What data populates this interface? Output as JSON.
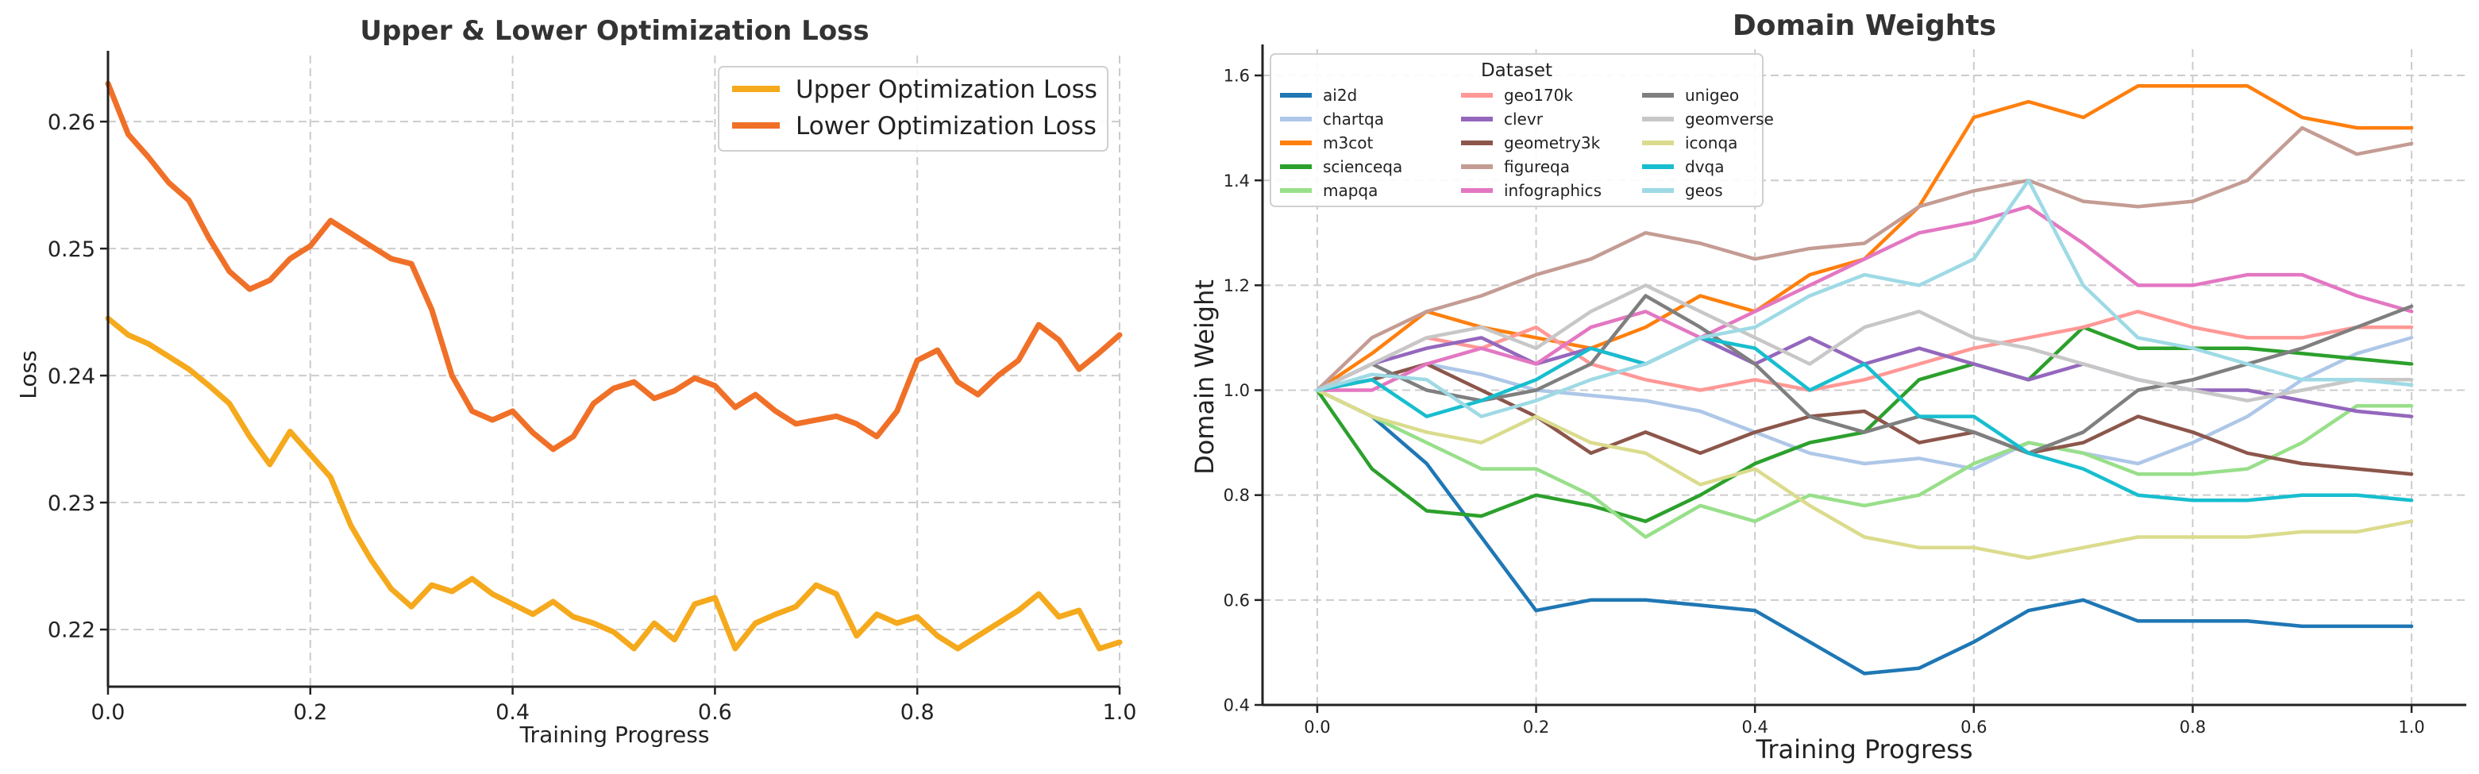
{
  "chart_data": [
    {
      "type": "line",
      "title": "Upper & Lower Optimization Loss",
      "xlabel": "Training Progress",
      "ylabel": "Loss",
      "xlim": [
        0.0,
        1.0
      ],
      "ylim": [
        0.2155,
        0.2652
      ],
      "xticks": [
        0.0,
        0.2,
        0.4,
        0.6,
        0.8,
        1.0
      ],
      "xtick_labels": [
        "0.0",
        "0.2",
        "0.4",
        "0.6",
        "0.8",
        "1.0"
      ],
      "yticks": [
        0.22,
        0.23,
        0.24,
        0.25,
        0.26
      ],
      "ytick_labels": [
        "0.22",
        "0.23",
        "0.24",
        "0.25",
        "0.26"
      ],
      "grid": true,
      "legend_position": "top-right",
      "series": [
        {
          "name": "Upper Optimization Loss",
          "color": "#f5a91c",
          "x": [
            0.0,
            0.02,
            0.04,
            0.06,
            0.08,
            0.1,
            0.12,
            0.14,
            0.16,
            0.18,
            0.2,
            0.22,
            0.24,
            0.26,
            0.28,
            0.3,
            0.32,
            0.34,
            0.36,
            0.38,
            0.4,
            0.42,
            0.44,
            0.46,
            0.48,
            0.5,
            0.52,
            0.54,
            0.56,
            0.58,
            0.6,
            0.62,
            0.64,
            0.66,
            0.68,
            0.7,
            0.72,
            0.74,
            0.76,
            0.78,
            0.8,
            0.82,
            0.84,
            0.86,
            0.88,
            0.9,
            0.92,
            0.94,
            0.96,
            0.98,
            1.0
          ],
          "y": [
            0.2445,
            0.2432,
            0.2425,
            0.2415,
            0.2405,
            0.2392,
            0.2378,
            0.2352,
            0.233,
            0.2356,
            0.2338,
            0.232,
            0.2282,
            0.2255,
            0.2232,
            0.2218,
            0.2235,
            0.223,
            0.224,
            0.2228,
            0.222,
            0.2212,
            0.2222,
            0.221,
            0.2205,
            0.2198,
            0.2185,
            0.2205,
            0.2192,
            0.222,
            0.2225,
            0.2185,
            0.2205,
            0.2212,
            0.2218,
            0.2235,
            0.2228,
            0.2195,
            0.2212,
            0.2205,
            0.221,
            0.2195,
            0.2185,
            0.2195,
            0.2205,
            0.2215,
            0.2228,
            0.221,
            0.2215,
            0.2185,
            0.219
          ]
        },
        {
          "name": "Lower Optimization Loss",
          "color": "#f07028",
          "x": [
            0.0,
            0.02,
            0.04,
            0.06,
            0.08,
            0.1,
            0.12,
            0.14,
            0.16,
            0.18,
            0.2,
            0.22,
            0.24,
            0.26,
            0.28,
            0.3,
            0.32,
            0.34,
            0.36,
            0.38,
            0.4,
            0.42,
            0.44,
            0.46,
            0.48,
            0.5,
            0.52,
            0.54,
            0.56,
            0.58,
            0.6,
            0.62,
            0.64,
            0.66,
            0.68,
            0.7,
            0.72,
            0.74,
            0.76,
            0.78,
            0.8,
            0.82,
            0.84,
            0.86,
            0.88,
            0.9,
            0.92,
            0.94,
            0.96,
            0.98,
            1.0
          ],
          "y": [
            0.263,
            0.259,
            0.2572,
            0.2552,
            0.2538,
            0.2508,
            0.2482,
            0.2468,
            0.2475,
            0.2492,
            0.2502,
            0.2522,
            0.2512,
            0.2502,
            0.2492,
            0.2488,
            0.2452,
            0.24,
            0.2372,
            0.2365,
            0.2372,
            0.2355,
            0.2342,
            0.2352,
            0.2378,
            0.239,
            0.2395,
            0.2382,
            0.2388,
            0.2398,
            0.2392,
            0.2375,
            0.2385,
            0.2372,
            0.2362,
            0.2365,
            0.2368,
            0.2362,
            0.2352,
            0.2372,
            0.2412,
            0.242,
            0.2395,
            0.2385,
            0.24,
            0.2412,
            0.244,
            0.2428,
            0.2405,
            0.2418,
            0.2432
          ]
        }
      ]
    },
    {
      "type": "line",
      "title": "Domain Weights",
      "xlabel": "Training Progress",
      "ylabel": "Domain Weight",
      "xlim": [
        -0.05,
        1.05
      ],
      "ylim": [
        0.4,
        1.65
      ],
      "xticks": [
        0.0,
        0.2,
        0.4,
        0.6,
        0.8,
        1.0
      ],
      "xtick_labels": [
        "0.0",
        "0.2",
        "0.4",
        "0.6",
        "0.8",
        "1.0"
      ],
      "yticks": [
        0.4,
        0.6,
        0.8,
        1.0,
        1.2,
        1.4,
        1.6
      ],
      "ytick_labels": [
        "0.4",
        "0.6",
        "0.8",
        "1.0",
        "1.2",
        "1.4",
        "1.6"
      ],
      "grid": true,
      "legend_title": "Dataset",
      "legend_position": "top-left",
      "x": [
        0.0,
        0.05,
        0.1,
        0.15,
        0.2,
        0.25,
        0.3,
        0.35,
        0.4,
        0.45,
        0.5,
        0.55,
        0.6,
        0.65,
        0.7,
        0.75,
        0.8,
        0.85,
        0.9,
        0.95,
        1.0
      ],
      "series": [
        {
          "name": "ai2d",
          "color": "#1f77b4",
          "values": [
            1.0,
            0.95,
            0.86,
            0.72,
            0.58,
            0.6,
            0.6,
            0.59,
            0.58,
            0.52,
            0.46,
            0.47,
            0.52,
            0.58,
            0.6,
            0.56,
            0.56,
            0.56,
            0.55,
            0.55,
            0.55
          ]
        },
        {
          "name": "chartqa",
          "color": "#aec7e8",
          "values": [
            1.0,
            1.02,
            1.05,
            1.03,
            1.0,
            0.99,
            0.98,
            0.96,
            0.92,
            0.88,
            0.86,
            0.87,
            0.85,
            0.9,
            0.88,
            0.86,
            0.9,
            0.95,
            1.02,
            1.07,
            1.1
          ]
        },
        {
          "name": "m3cot",
          "color": "#ff7f0e",
          "values": [
            1.0,
            1.07,
            1.15,
            1.12,
            1.1,
            1.08,
            1.12,
            1.18,
            1.15,
            1.22,
            1.25,
            1.35,
            1.52,
            1.55,
            1.52,
            1.58,
            1.58,
            1.58,
            1.52,
            1.5,
            1.5
          ]
        },
        {
          "name": "scienceqa",
          "color": "#2ca02c",
          "values": [
            1.0,
            0.85,
            0.77,
            0.76,
            0.8,
            0.78,
            0.75,
            0.8,
            0.86,
            0.9,
            0.92,
            1.02,
            1.05,
            1.02,
            1.12,
            1.08,
            1.08,
            1.08,
            1.07,
            1.06,
            1.05
          ]
        },
        {
          "name": "mapqa",
          "color": "#98df8a",
          "values": [
            1.0,
            0.95,
            0.9,
            0.85,
            0.85,
            0.8,
            0.72,
            0.78,
            0.75,
            0.8,
            0.78,
            0.8,
            0.86,
            0.9,
            0.88,
            0.84,
            0.84,
            0.85,
            0.9,
            0.97,
            0.97
          ]
        },
        {
          "name": "geo170k",
          "color": "#ff9896",
          "values": [
            1.0,
            1.05,
            1.1,
            1.08,
            1.12,
            1.05,
            1.02,
            1.0,
            1.02,
            1.0,
            1.02,
            1.05,
            1.08,
            1.1,
            1.12,
            1.15,
            1.12,
            1.1,
            1.1,
            1.12,
            1.12
          ]
        },
        {
          "name": "clevr",
          "color": "#9467bd",
          "values": [
            1.0,
            1.05,
            1.08,
            1.1,
            1.05,
            1.08,
            1.05,
            1.1,
            1.05,
            1.1,
            1.05,
            1.08,
            1.05,
            1.02,
            1.05,
            1.02,
            1.0,
            1.0,
            0.98,
            0.96,
            0.95
          ]
        },
        {
          "name": "geometry3k",
          "color": "#8c564b",
          "values": [
            1.0,
            1.02,
            1.05,
            1.0,
            0.95,
            0.88,
            0.92,
            0.88,
            0.92,
            0.95,
            0.96,
            0.9,
            0.92,
            0.88,
            0.9,
            0.95,
            0.92,
            0.88,
            0.86,
            0.85,
            0.84
          ]
        },
        {
          "name": "figureqa",
          "color": "#c49c94",
          "values": [
            1.0,
            1.1,
            1.15,
            1.18,
            1.22,
            1.25,
            1.3,
            1.28,
            1.25,
            1.27,
            1.28,
            1.35,
            1.38,
            1.4,
            1.36,
            1.35,
            1.36,
            1.4,
            1.5,
            1.45,
            1.47
          ]
        },
        {
          "name": "infographics",
          "color": "#e377c2",
          "values": [
            1.0,
            1.0,
            1.05,
            1.08,
            1.05,
            1.12,
            1.15,
            1.1,
            1.15,
            1.2,
            1.25,
            1.3,
            1.32,
            1.35,
            1.28,
            1.2,
            1.2,
            1.22,
            1.22,
            1.18,
            1.15
          ]
        },
        {
          "name": "unigeo",
          "color": "#7f7f7f",
          "values": [
            1.0,
            1.05,
            1.0,
            0.98,
            1.0,
            1.05,
            1.18,
            1.12,
            1.05,
            0.95,
            0.92,
            0.95,
            0.92,
            0.88,
            0.92,
            1.0,
            1.02,
            1.05,
            1.08,
            1.12,
            1.16
          ]
        },
        {
          "name": "geomverse",
          "color": "#c7c7c7",
          "values": [
            1.0,
            1.05,
            1.1,
            1.12,
            1.08,
            1.15,
            1.2,
            1.15,
            1.1,
            1.05,
            1.12,
            1.15,
            1.1,
            1.08,
            1.05,
            1.02,
            1.0,
            0.98,
            1.0,
            1.02,
            1.02
          ]
        },
        {
          "name": "iconqa",
          "color": "#dbdb8d",
          "values": [
            1.0,
            0.95,
            0.92,
            0.9,
            0.95,
            0.9,
            0.88,
            0.82,
            0.85,
            0.78,
            0.72,
            0.7,
            0.7,
            0.68,
            0.7,
            0.72,
            0.72,
            0.72,
            0.73,
            0.73,
            0.75
          ]
        },
        {
          "name": "dvqa",
          "color": "#17becf",
          "values": [
            1.0,
            1.02,
            0.95,
            0.98,
            1.02,
            1.08,
            1.05,
            1.1,
            1.08,
            1.0,
            1.05,
            0.95,
            0.95,
            0.88,
            0.85,
            0.8,
            0.79,
            0.79,
            0.8,
            0.8,
            0.79
          ]
        },
        {
          "name": "geos",
          "color": "#9edae5",
          "values": [
            1.0,
            1.03,
            1.02,
            0.95,
            0.98,
            1.02,
            1.05,
            1.1,
            1.12,
            1.18,
            1.22,
            1.2,
            1.25,
            1.4,
            1.2,
            1.1,
            1.08,
            1.05,
            1.02,
            1.02,
            1.01
          ]
        }
      ]
    }
  ]
}
